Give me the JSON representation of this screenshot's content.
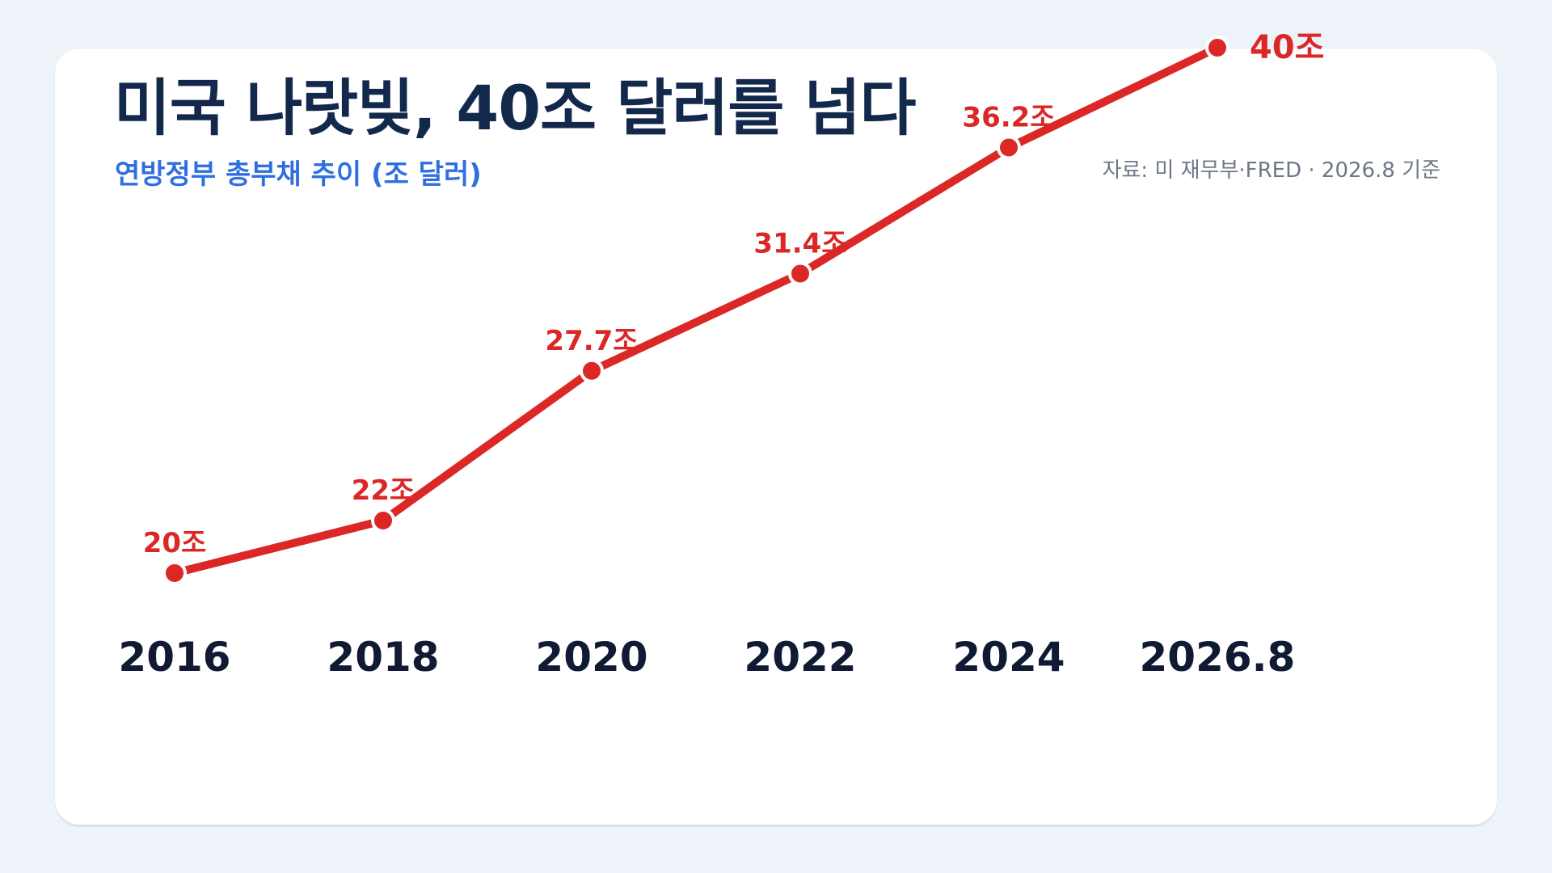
{
  "header": {
    "title": "미국 나랏빚, 40조 달러를 넘다",
    "subtitle": "연방정부 총부채 추이 (조 달러)",
    "source": "자료: 미 재무부·FRED · 2026.8 기준"
  },
  "colors": {
    "background": "#eef2f9",
    "card": "#ffffff",
    "title": "#13294b",
    "subtitle": "#2f6fe0",
    "source": "#6e7788",
    "series": "#db2726",
    "tick": "#101a33"
  },
  "chart_data": {
    "type": "line",
    "title": "미국 나랏빚, 40조 달러를 넘다",
    "subtitle": "연방정부 총부채 추이 (조 달러)",
    "categories": [
      "2016",
      "2018",
      "2020",
      "2022",
      "2024",
      "2026.8"
    ],
    "x": [
      2016,
      2018,
      2020,
      2022,
      2024,
      2026.67
    ],
    "values": [
      20,
      22,
      27.7,
      31.4,
      36.2,
      40
    ],
    "data_labels": [
      "20조",
      "22조",
      "27.7조",
      "31.4조",
      "36.2조",
      "40조"
    ],
    "unit": "조 달러",
    "xlabel": "",
    "ylabel": "",
    "ylim": [
      10,
      45
    ],
    "grid": false,
    "legend": "none",
    "color": "#db2726"
  }
}
